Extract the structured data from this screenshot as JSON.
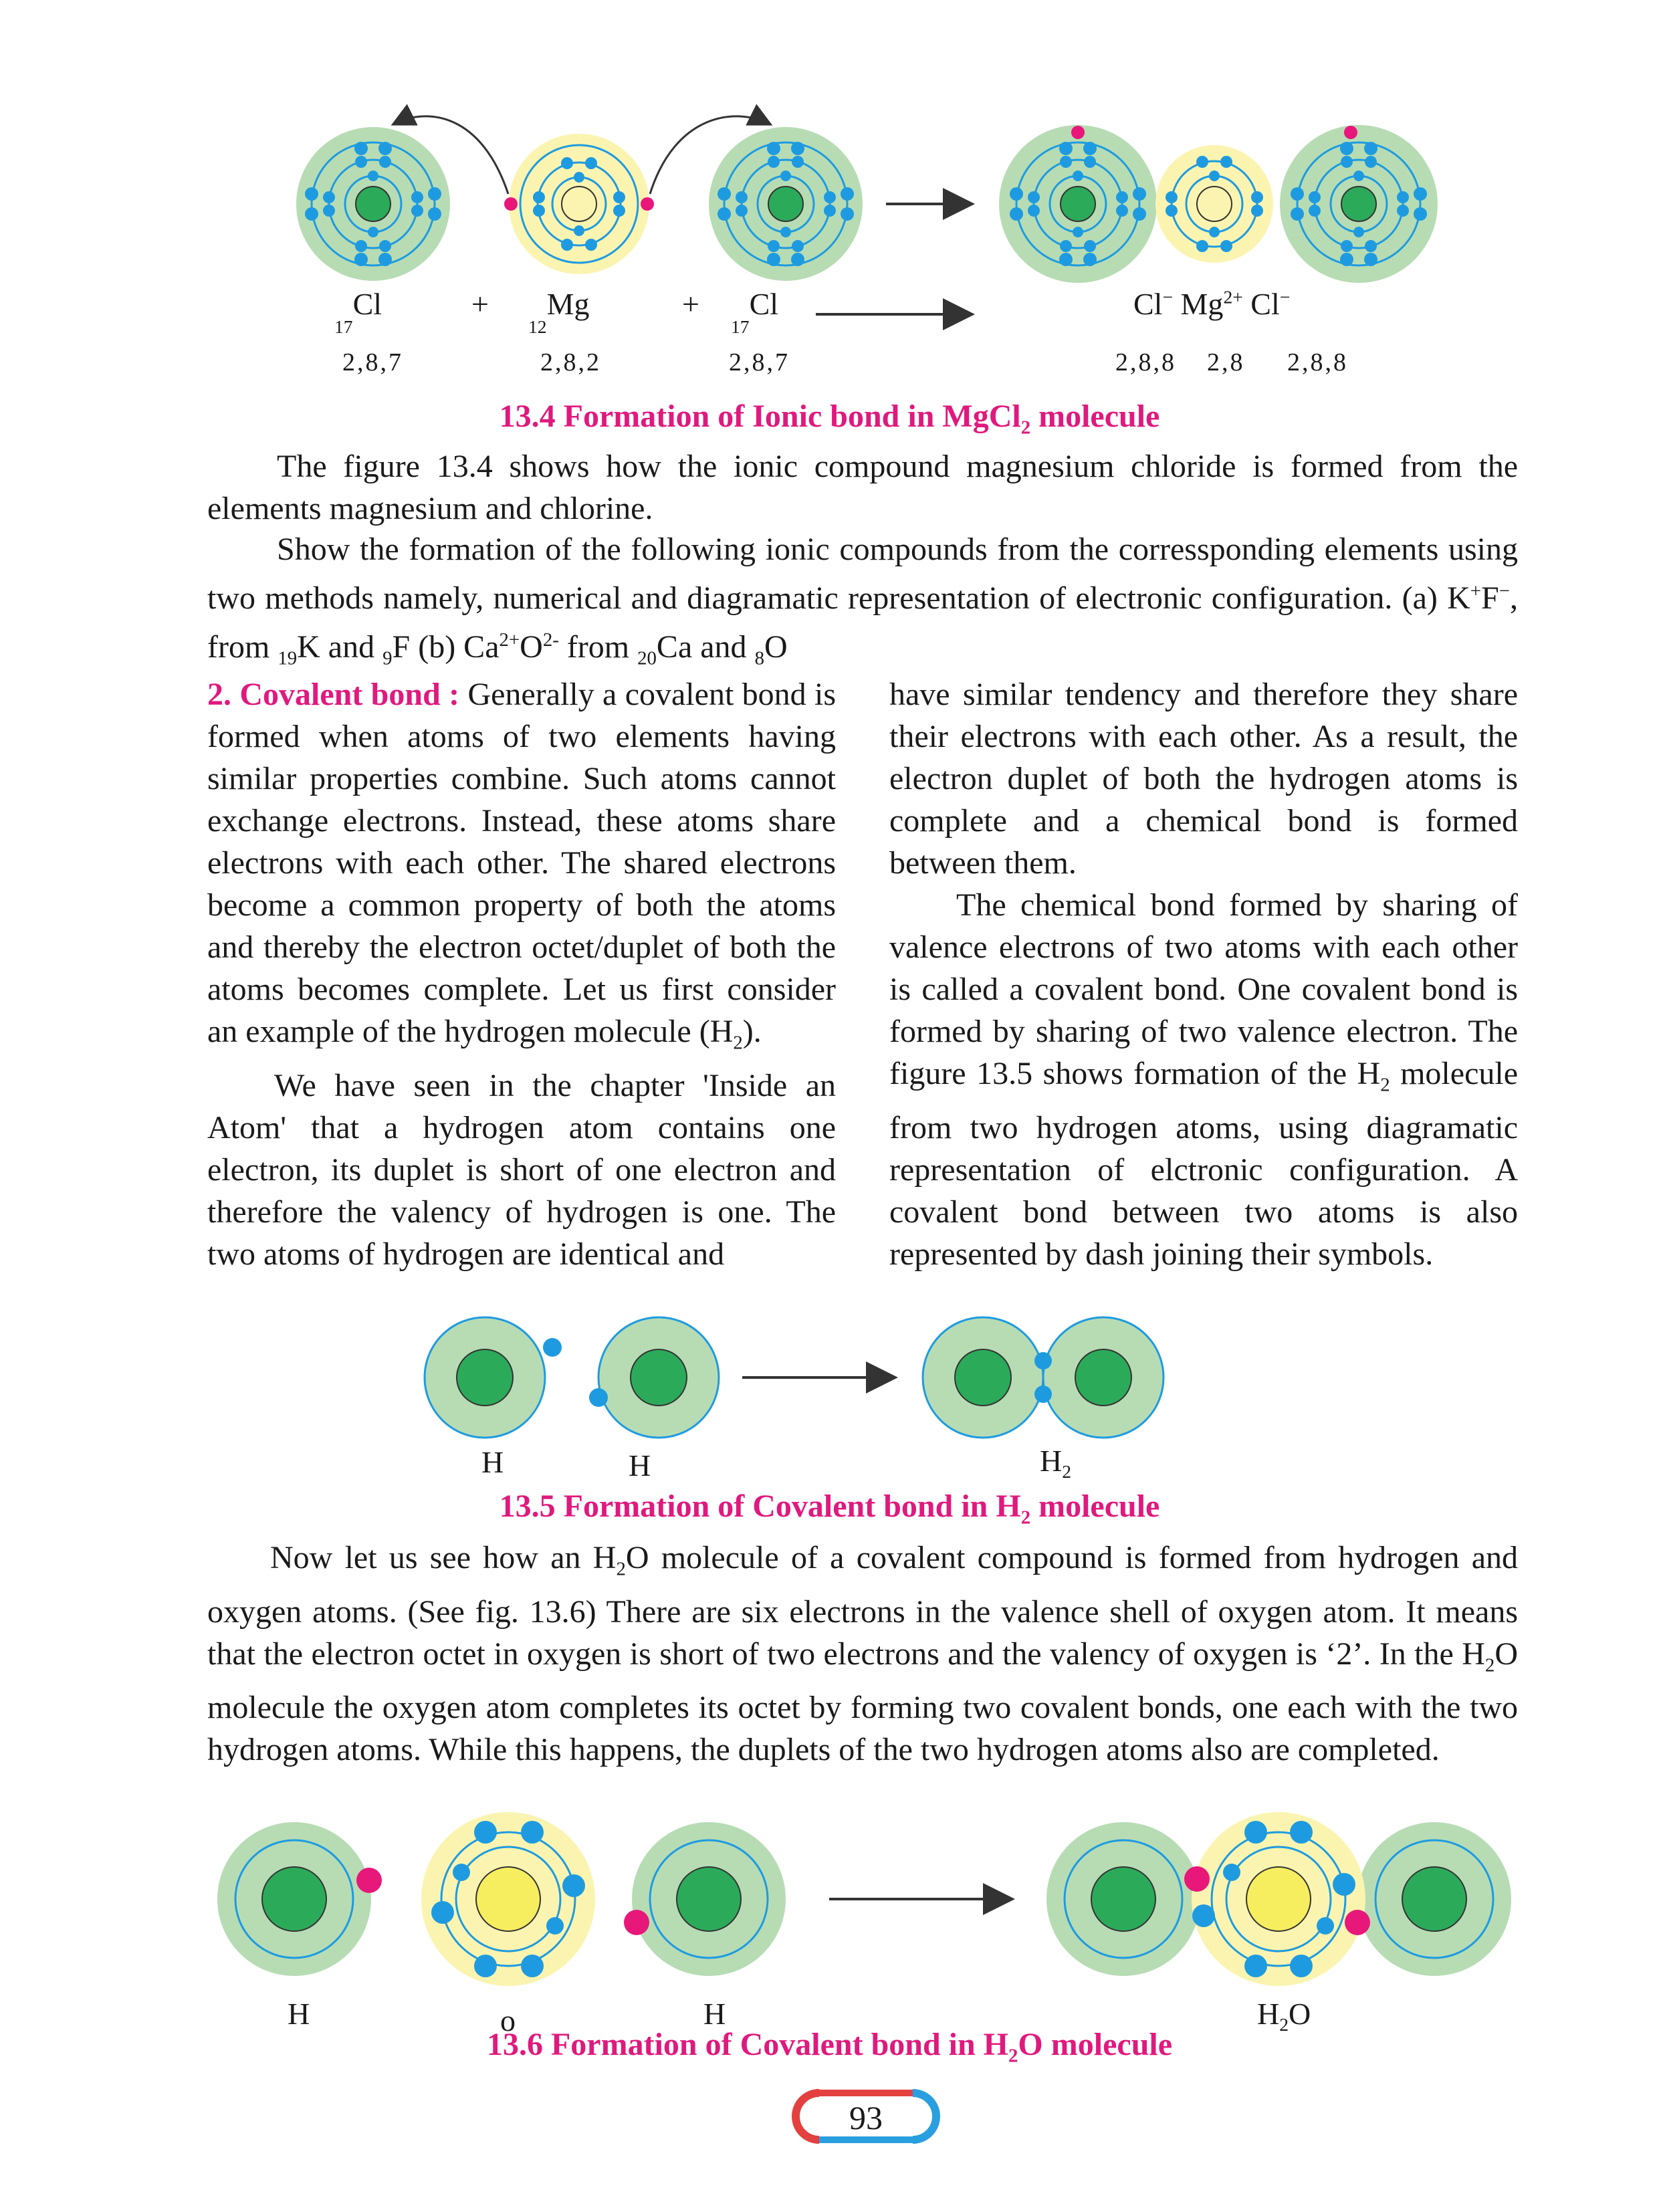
{
  "fig134": {
    "labels": {
      "cl1": {
        "pre": "17",
        "sym": "Cl"
      },
      "plus1": "+",
      "mg": {
        "pre": "12",
        "sym": "Mg"
      },
      "plus2": "+",
      "cl2": {
        "pre": "17",
        "sym": "Cl"
      },
      "product": {
        "cl": "Cl",
        "clsup": "−",
        "mg": "Mg",
        "mgsup": "2+",
        "cl2": "Cl",
        "cl2sup": "−"
      }
    },
    "configs": {
      "cl1": "2,8,7",
      "mg": "2,8,2",
      "cl2": "2,8,7",
      "cl_a": "2,8,8",
      "mg_b": "2,8",
      "cl_c": "2,8,8"
    },
    "caption": {
      "text": "13.4 Formation of Ionic bond in MgCl",
      "sub": "2",
      "tail": " molecule"
    }
  },
  "para1": "The figure 13.4 shows how the ionic compound magnesium chloride is formed from the elements magnesium and chlorine.",
  "para2": {
    "text": "Show the formation of the following ionic compounds from the corressponding elements using two methods namely, numerical and diagramatic representation of electronic configuration. (a) ",
    "kf": "K",
    "kf_sup1": "+",
    "kf2": "F",
    "kf_sup2": "−",
    "from1": ", from ",
    "k_pre": "19",
    "k": "K",
    "and1": " and ",
    "f_pre": "9",
    "f": "F",
    "b": " (b) Ca",
    "ca_sup": "2+",
    "o": "O",
    "o_sup": "2-",
    "from2": " from ",
    "ca_pre": "20",
    "ca": "Ca",
    "and2": " and ",
    "o_pre": "8",
    "o2": "O"
  },
  "left_col": {
    "heading": "2. Covalent bond :",
    "p1": " Generally a covalent bond is formed when atoms of two elements having similar properties combine. Such atoms cannot exchange electrons. Instead, these atoms share electrons with each other. The shared electrons become a common property of both the atoms and thereby the electron octet/duplet of both the atoms becomes complete. Let us first consider an example of the hydrogen molecule (H",
    "p1_sub": "2",
    "p1_end": ").",
    "p2": "We have seen in the chapter 'Inside an Atom' that a hydrogen atom contains one electron, its duplet is short of one electron and therefore the valency of hydrogen is one. The two atoms of hydrogen are identical and"
  },
  "right_col": {
    "p1": "have similar tendency and therefore they share their electrons with each other. As a result, the electron duplet of both the hydrogen atoms is complete and a chemical bond is formed between them.",
    "p2a": "The chemical bond formed by sharing of valence electrons of two atoms with each other is called a covalent bond. One covalent bond is formed by sharing of two valence electron. The figure 13.5 shows formation of the H",
    "p2_sub": "2",
    "p2b": " molecule from two hydrogen atoms, using diagramatic representation of elctronic configuration. A covalent bond between two atoms is also represented by dash joining their symbols."
  },
  "fig135": {
    "labels": {
      "h1": "H",
      "h2": "H",
      "h2mol": "H",
      "h2mol_sub": "2"
    },
    "caption": {
      "text": "13.5 Formation of Covalent bond in H",
      "sub": "2",
      "tail": " molecule"
    }
  },
  "para3": {
    "a": "Now let us see how an  H",
    "a_sub": "2",
    "b": "O molecule of a covalent compound is formed from hydrogen and oxygen atoms. (See fig. 13.6) There are six electrons in the valence shell of oxygen atom. It means that the electron octet in oxygen is short of two electrons and the valency of oxygen is ‘2’. In the H",
    "b_sub": "2",
    "c": "O molecule the oxygen atom completes its octet by forming two covalent bonds, one each with the two hydrogen atoms. While this happens, the duplets of the two hydrogen atoms also are completed."
  },
  "fig136": {
    "labels": {
      "h1": "H",
      "o": "o",
      "h2": "H",
      "h2o": "H",
      "h2o_sub": "2",
      "h2o_tail": "O"
    },
    "caption": {
      "text": "13.6 Formation of Covalent bond in H",
      "sub": "2",
      "tail": "O molecule"
    }
  },
  "page_number": "93",
  "colors": {
    "caption": "#e0197e",
    "outer_shell": "#b7dcb4",
    "inner": "#fbf4b0",
    "nucleus": "#2bab5a",
    "electron": "#1e9be0",
    "valence": "#e8177a"
  }
}
